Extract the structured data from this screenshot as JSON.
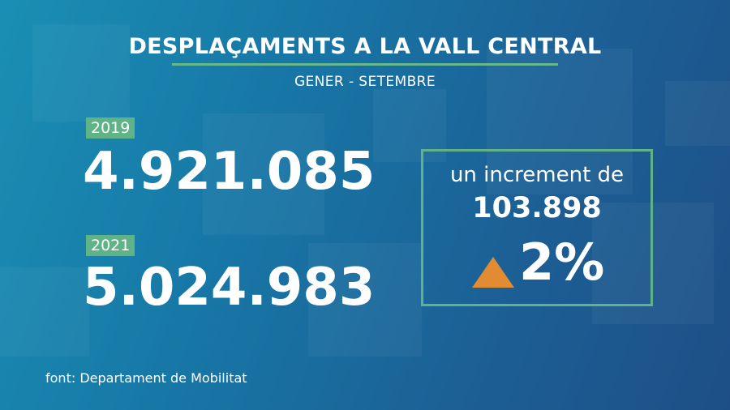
{
  "title": "DESPLAÇAMENTS A LA VALL CENTRAL",
  "subtitle": "GENER - SETEMBRE",
  "stats": [
    {
      "year": "2019",
      "value": "4.921.085"
    },
    {
      "year": "2021",
      "value": "5.024.983"
    }
  ],
  "increase": {
    "caption": "un increment de",
    "value": "103.898",
    "percent": "2%"
  },
  "source": "font: Departament de Mobilitat",
  "colors": {
    "accent_green": "#5fb387",
    "arrow_orange": "#e18b33"
  },
  "icons": {
    "increase": "triangle-up-icon"
  }
}
